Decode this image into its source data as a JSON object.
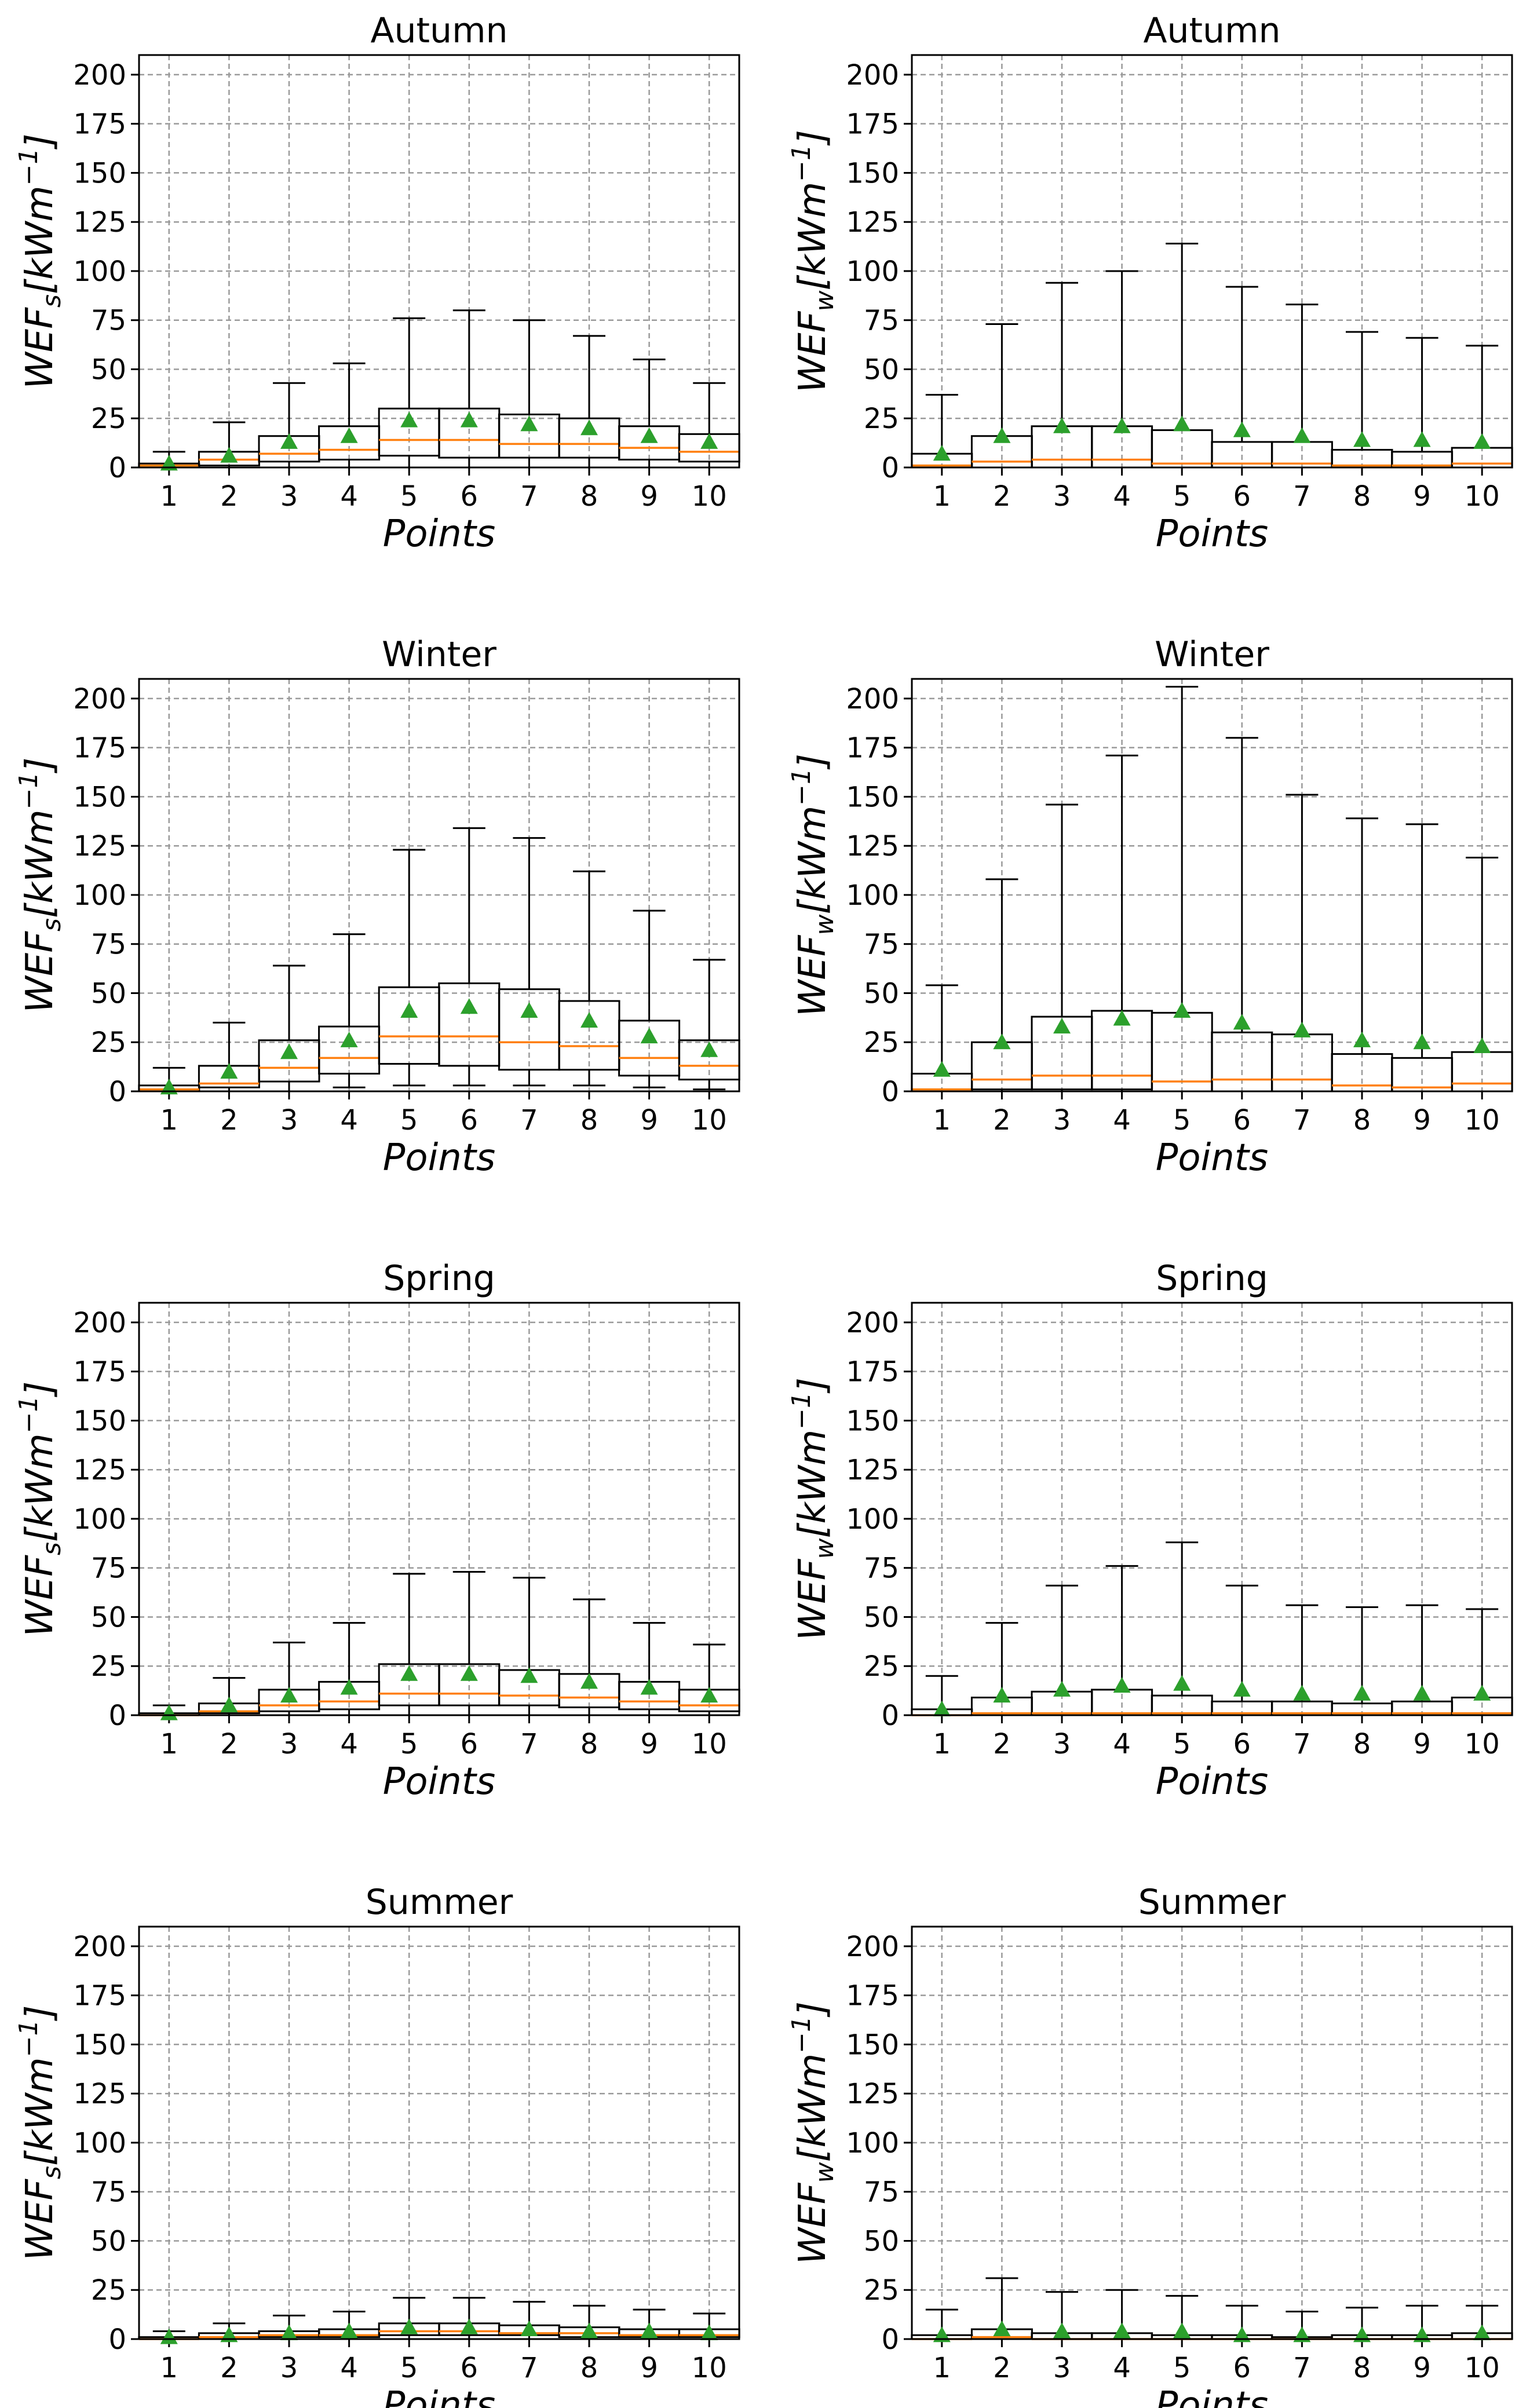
{
  "chart_data": [
    {
      "type": "box",
      "title": "Autumn",
      "xlabel": "Points",
      "ylabel": {
        "base": "WEF",
        "sub": "s",
        "unit_prefix": "[kWm",
        "unit_sup": "−1",
        "unit_suffix": "]"
      },
      "categories": [
        "1",
        "2",
        "3",
        "4",
        "5",
        "6",
        "7",
        "8",
        "9",
        "10"
      ],
      "ylim": [
        0,
        210
      ],
      "yticks": [
        0,
        25,
        50,
        75,
        100,
        125,
        150,
        175,
        200
      ],
      "grid": true,
      "boxes": [
        {
          "whislo": 0,
          "q1": 0,
          "med": 1,
          "q3": 2,
          "whishi": 8,
          "mean": 2
        },
        {
          "whislo": 0,
          "q1": 1,
          "med": 4,
          "q3": 8,
          "whishi": 23,
          "mean": 6
        },
        {
          "whislo": 0,
          "q1": 3,
          "med": 7,
          "q3": 16,
          "whishi": 43,
          "mean": 13
        },
        {
          "whislo": 0,
          "q1": 4,
          "med": 9,
          "q3": 21,
          "whishi": 53,
          "mean": 16
        },
        {
          "whislo": 0,
          "q1": 6,
          "med": 14,
          "q3": 30,
          "whishi": 76,
          "mean": 24
        },
        {
          "whislo": 0,
          "q1": 5,
          "med": 14,
          "q3": 30,
          "whishi": 80,
          "mean": 24
        },
        {
          "whislo": 0,
          "q1": 5,
          "med": 12,
          "q3": 27,
          "whishi": 75,
          "mean": 22
        },
        {
          "whislo": 0,
          "q1": 5,
          "med": 12,
          "q3": 25,
          "whishi": 67,
          "mean": 20
        },
        {
          "whislo": 0,
          "q1": 4,
          "med": 10,
          "q3": 21,
          "whishi": 55,
          "mean": 16
        },
        {
          "whislo": 0,
          "q1": 3,
          "med": 8,
          "q3": 17,
          "whishi": 43,
          "mean": 13
        }
      ]
    },
    {
      "type": "box",
      "title": "Autumn",
      "xlabel": "Points",
      "ylabel": {
        "base": "WEF",
        "sub": "w",
        "unit_prefix": "[kWm",
        "unit_sup": "−1",
        "unit_suffix": "]"
      },
      "categories": [
        "1",
        "2",
        "3",
        "4",
        "5",
        "6",
        "7",
        "8",
        "9",
        "10"
      ],
      "ylim": [
        0,
        210
      ],
      "yticks": [
        0,
        25,
        50,
        75,
        100,
        125,
        150,
        175,
        200
      ],
      "grid": true,
      "boxes": [
        {
          "whislo": 0,
          "q1": 0,
          "med": 1,
          "q3": 7,
          "whishi": 37,
          "mean": 7
        },
        {
          "whislo": 0,
          "q1": 0,
          "med": 3,
          "q3": 16,
          "whishi": 73,
          "mean": 16
        },
        {
          "whislo": 0,
          "q1": 0,
          "med": 4,
          "q3": 21,
          "whishi": 94,
          "mean": 21
        },
        {
          "whislo": 0,
          "q1": 0,
          "med": 4,
          "q3": 21,
          "whishi": 100,
          "mean": 21
        },
        {
          "whislo": 0,
          "q1": 0,
          "med": 2,
          "q3": 19,
          "whishi": 114,
          "mean": 22
        },
        {
          "whislo": 0,
          "q1": 0,
          "med": 2,
          "q3": 13,
          "whishi": 92,
          "mean": 19
        },
        {
          "whislo": 0,
          "q1": 0,
          "med": 2,
          "q3": 13,
          "whishi": 83,
          "mean": 16
        },
        {
          "whislo": 0,
          "q1": 0,
          "med": 1,
          "q3": 9,
          "whishi": 69,
          "mean": 14
        },
        {
          "whislo": 0,
          "q1": 0,
          "med": 1,
          "q3": 8,
          "whishi": 66,
          "mean": 14
        },
        {
          "whislo": 0,
          "q1": 0,
          "med": 2,
          "q3": 10,
          "whishi": 62,
          "mean": 13
        }
      ]
    },
    {
      "type": "box",
      "title": "Winter",
      "xlabel": "Points",
      "ylabel": {
        "base": "WEF",
        "sub": "s",
        "unit_prefix": "[kWm",
        "unit_sup": "−1",
        "unit_suffix": "]"
      },
      "categories": [
        "1",
        "2",
        "3",
        "4",
        "5",
        "6",
        "7",
        "8",
        "9",
        "10"
      ],
      "ylim": [
        0,
        210
      ],
      "yticks": [
        0,
        25,
        50,
        75,
        100,
        125,
        150,
        175,
        200
      ],
      "grid": true,
      "boxes": [
        {
          "whislo": 0,
          "q1": 0,
          "med": 1,
          "q3": 3,
          "whishi": 12,
          "mean": 2
        },
        {
          "whislo": 0,
          "q1": 2,
          "med": 4,
          "q3": 13,
          "whishi": 35,
          "mean": 10
        },
        {
          "whislo": 0,
          "q1": 5,
          "med": 12,
          "q3": 26,
          "whishi": 64,
          "mean": 20
        },
        {
          "whislo": 2,
          "q1": 9,
          "med": 17,
          "q3": 33,
          "whishi": 80,
          "mean": 26
        },
        {
          "whislo": 3,
          "q1": 14,
          "med": 28,
          "q3": 53,
          "whishi": 123,
          "mean": 41
        },
        {
          "whislo": 3,
          "q1": 13,
          "med": 28,
          "q3": 55,
          "whishi": 134,
          "mean": 43
        },
        {
          "whislo": 3,
          "q1": 11,
          "med": 25,
          "q3": 52,
          "whishi": 129,
          "mean": 41
        },
        {
          "whislo": 3,
          "q1": 11,
          "med": 23,
          "q3": 46,
          "whishi": 112,
          "mean": 36
        },
        {
          "whislo": 2,
          "q1": 8,
          "med": 17,
          "q3": 36,
          "whishi": 92,
          "mean": 28
        },
        {
          "whislo": 1,
          "q1": 6,
          "med": 13,
          "q3": 26,
          "whishi": 67,
          "mean": 21
        }
      ]
    },
    {
      "type": "box",
      "title": "Winter",
      "xlabel": "Points",
      "ylabel": {
        "base": "WEF",
        "sub": "w",
        "unit_prefix": "[kWm",
        "unit_sup": "−1",
        "unit_suffix": "]"
      },
      "categories": [
        "1",
        "2",
        "3",
        "4",
        "5",
        "6",
        "7",
        "8",
        "9",
        "10"
      ],
      "ylim": [
        0,
        210
      ],
      "yticks": [
        0,
        25,
        50,
        75,
        100,
        125,
        150,
        175,
        200
      ],
      "grid": true,
      "boxes": [
        {
          "whislo": 0,
          "q1": 0,
          "med": 1,
          "q3": 9,
          "whishi": 54,
          "mean": 11
        },
        {
          "whislo": 0,
          "q1": 1,
          "med": 6,
          "q3": 25,
          "whishi": 108,
          "mean": 25
        },
        {
          "whislo": 0,
          "q1": 1,
          "med": 8,
          "q3": 38,
          "whishi": 146,
          "mean": 33
        },
        {
          "whislo": 0,
          "q1": 1,
          "med": 8,
          "q3": 41,
          "whishi": 171,
          "mean": 37
        },
        {
          "whislo": 0,
          "q1": 0,
          "med": 5,
          "q3": 40,
          "whishi": 206,
          "mean": 41
        },
        {
          "whislo": 0,
          "q1": 0,
          "med": 6,
          "q3": 30,
          "whishi": 180,
          "mean": 35
        },
        {
          "whislo": 0,
          "q1": 0,
          "med": 6,
          "q3": 29,
          "whishi": 151,
          "mean": 31
        },
        {
          "whislo": 0,
          "q1": 0,
          "med": 3,
          "q3": 19,
          "whishi": 139,
          "mean": 26
        },
        {
          "whislo": 0,
          "q1": 0,
          "med": 2,
          "q3": 17,
          "whishi": 136,
          "mean": 25
        },
        {
          "whislo": 0,
          "q1": 0,
          "med": 4,
          "q3": 20,
          "whishi": 119,
          "mean": 23
        }
      ]
    },
    {
      "type": "box",
      "title": "Spring",
      "xlabel": "Points",
      "ylabel": {
        "base": "WEF",
        "sub": "s",
        "unit_prefix": "[kWm",
        "unit_sup": "−1",
        "unit_suffix": "]"
      },
      "categories": [
        "1",
        "2",
        "3",
        "4",
        "5",
        "6",
        "7",
        "8",
        "9",
        "10"
      ],
      "ylim": [
        0,
        210
      ],
      "yticks": [
        0,
        25,
        50,
        75,
        100,
        125,
        150,
        175,
        200
      ],
      "grid": true,
      "boxes": [
        {
          "whislo": 0,
          "q1": 0,
          "med": 0,
          "q3": 1,
          "whishi": 5,
          "mean": 1
        },
        {
          "whislo": 0,
          "q1": 1,
          "med": 2,
          "q3": 6,
          "whishi": 19,
          "mean": 5
        },
        {
          "whislo": 0,
          "q1": 2,
          "med": 5,
          "q3": 13,
          "whishi": 37,
          "mean": 10
        },
        {
          "whislo": 0,
          "q1": 3,
          "med": 7,
          "q3": 17,
          "whishi": 47,
          "mean": 14
        },
        {
          "whislo": 0,
          "q1": 5,
          "med": 11,
          "q3": 26,
          "whishi": 72,
          "mean": 21
        },
        {
          "whislo": 0,
          "q1": 5,
          "med": 11,
          "q3": 26,
          "whishi": 73,
          "mean": 21
        },
        {
          "whislo": 0,
          "q1": 5,
          "med": 10,
          "q3": 23,
          "whishi": 70,
          "mean": 20
        },
        {
          "whislo": 0,
          "q1": 4,
          "med": 9,
          "q3": 21,
          "whishi": 59,
          "mean": 17
        },
        {
          "whislo": 0,
          "q1": 3,
          "med": 7,
          "q3": 17,
          "whishi": 47,
          "mean": 14
        },
        {
          "whislo": 0,
          "q1": 2,
          "med": 5,
          "q3": 13,
          "whishi": 36,
          "mean": 10
        }
      ]
    },
    {
      "type": "box",
      "title": "Spring",
      "xlabel": "Points",
      "ylabel": {
        "base": "WEF",
        "sub": "w",
        "unit_prefix": "[kWm",
        "unit_sup": "−1",
        "unit_suffix": "]"
      },
      "categories": [
        "1",
        "2",
        "3",
        "4",
        "5",
        "6",
        "7",
        "8",
        "9",
        "10"
      ],
      "ylim": [
        0,
        210
      ],
      "yticks": [
        0,
        25,
        50,
        75,
        100,
        125,
        150,
        175,
        200
      ],
      "grid": true,
      "boxes": [
        {
          "whislo": 0,
          "q1": 0,
          "med": 0,
          "q3": 3,
          "whishi": 20,
          "mean": 3
        },
        {
          "whislo": 0,
          "q1": 0,
          "med": 1,
          "q3": 9,
          "whishi": 47,
          "mean": 10
        },
        {
          "whislo": 0,
          "q1": 0,
          "med": 1,
          "q3": 12,
          "whishi": 66,
          "mean": 13
        },
        {
          "whislo": 0,
          "q1": 0,
          "med": 1,
          "q3": 13,
          "whishi": 76,
          "mean": 15
        },
        {
          "whislo": 0,
          "q1": 0,
          "med": 1,
          "q3": 10,
          "whishi": 88,
          "mean": 16
        },
        {
          "whislo": 0,
          "q1": 0,
          "med": 1,
          "q3": 7,
          "whishi": 66,
          "mean": 13
        },
        {
          "whislo": 0,
          "q1": 0,
          "med": 1,
          "q3": 7,
          "whishi": 56,
          "mean": 11
        },
        {
          "whislo": 0,
          "q1": 0,
          "med": 1,
          "q3": 6,
          "whishi": 55,
          "mean": 11
        },
        {
          "whislo": 0,
          "q1": 0,
          "med": 1,
          "q3": 7,
          "whishi": 56,
          "mean": 11
        },
        {
          "whislo": 0,
          "q1": 0,
          "med": 1,
          "q3": 9,
          "whishi": 54,
          "mean": 11
        }
      ]
    },
    {
      "type": "box",
      "title": "Summer",
      "xlabel": "Points",
      "ylabel": {
        "base": "WEF",
        "sub": "s",
        "unit_prefix": "[kWm",
        "unit_sup": "−1",
        "unit_suffix": "]"
      },
      "categories": [
        "1",
        "2",
        "3",
        "4",
        "5",
        "6",
        "7",
        "8",
        "9",
        "10"
      ],
      "ylim": [
        0,
        210
      ],
      "yticks": [
        0,
        25,
        50,
        75,
        100,
        125,
        150,
        175,
        200
      ],
      "grid": true,
      "boxes": [
        {
          "whislo": 0,
          "q1": 0,
          "med": 0,
          "q3": 1,
          "whishi": 4,
          "mean": 1
        },
        {
          "whislo": 0,
          "q1": 0,
          "med": 1,
          "q3": 3,
          "whishi": 8,
          "mean": 2
        },
        {
          "whislo": 0,
          "q1": 1,
          "med": 2,
          "q3": 4,
          "whishi": 12,
          "mean": 3
        },
        {
          "whislo": 0,
          "q1": 1,
          "med": 2,
          "q3": 5,
          "whishi": 14,
          "mean": 4
        },
        {
          "whislo": 0,
          "q1": 2,
          "med": 4,
          "q3": 8,
          "whishi": 21,
          "mean": 6
        },
        {
          "whislo": 0,
          "q1": 2,
          "med": 4,
          "q3": 8,
          "whishi": 21,
          "mean": 6
        },
        {
          "whislo": 0,
          "q1": 2,
          "med": 3,
          "q3": 7,
          "whishi": 19,
          "mean": 5
        },
        {
          "whislo": 0,
          "q1": 1,
          "med": 3,
          "q3": 6,
          "whishi": 17,
          "mean": 4
        },
        {
          "whislo": 0,
          "q1": 1,
          "med": 2,
          "q3": 5,
          "whishi": 15,
          "mean": 4
        },
        {
          "whislo": 0,
          "q1": 1,
          "med": 2,
          "q3": 5,
          "whishi": 13,
          "mean": 3
        }
      ]
    },
    {
      "type": "box",
      "title": "Summer",
      "xlabel": "Points",
      "ylabel": {
        "base": "WEF",
        "sub": "w",
        "unit_prefix": "[kWm",
        "unit_sup": "−1",
        "unit_suffix": "]"
      },
      "categories": [
        "1",
        "2",
        "3",
        "4",
        "5",
        "6",
        "7",
        "8",
        "9",
        "10"
      ],
      "ylim": [
        0,
        210
      ],
      "yticks": [
        0,
        25,
        50,
        75,
        100,
        125,
        150,
        175,
        200
      ],
      "grid": true,
      "boxes": [
        {
          "whislo": 0,
          "q1": 0,
          "med": 0,
          "q3": 2,
          "whishi": 15,
          "mean": 2
        },
        {
          "whislo": 0,
          "q1": 0,
          "med": 1,
          "q3": 5,
          "whishi": 31,
          "mean": 5
        },
        {
          "whislo": 0,
          "q1": 0,
          "med": 0,
          "q3": 3,
          "whishi": 24,
          "mean": 4
        },
        {
          "whislo": 0,
          "q1": 0,
          "med": 0,
          "q3": 3,
          "whishi": 25,
          "mean": 4
        },
        {
          "whislo": 0,
          "q1": 0,
          "med": 0,
          "q3": 2,
          "whishi": 22,
          "mean": 4
        },
        {
          "whislo": 0,
          "q1": 0,
          "med": 0,
          "q3": 2,
          "whishi": 17,
          "mean": 2
        },
        {
          "whislo": 0,
          "q1": 0,
          "med": 0,
          "q3": 1,
          "whishi": 14,
          "mean": 2
        },
        {
          "whislo": 0,
          "q1": 0,
          "med": 0,
          "q3": 2,
          "whishi": 16,
          "mean": 2
        },
        {
          "whislo": 0,
          "q1": 0,
          "med": 0,
          "q3": 2,
          "whishi": 17,
          "mean": 2
        },
        {
          "whislo": 0,
          "q1": 0,
          "med": 0,
          "q3": 3,
          "whishi": 17,
          "mean": 3
        }
      ]
    }
  ],
  "colors": {
    "median": "#ff7f0e",
    "mean_marker": "#2ca02c",
    "box_edge": "#000000",
    "grid": "#9a9a9a"
  },
  "markers": {
    "mean": "triangle-up"
  }
}
